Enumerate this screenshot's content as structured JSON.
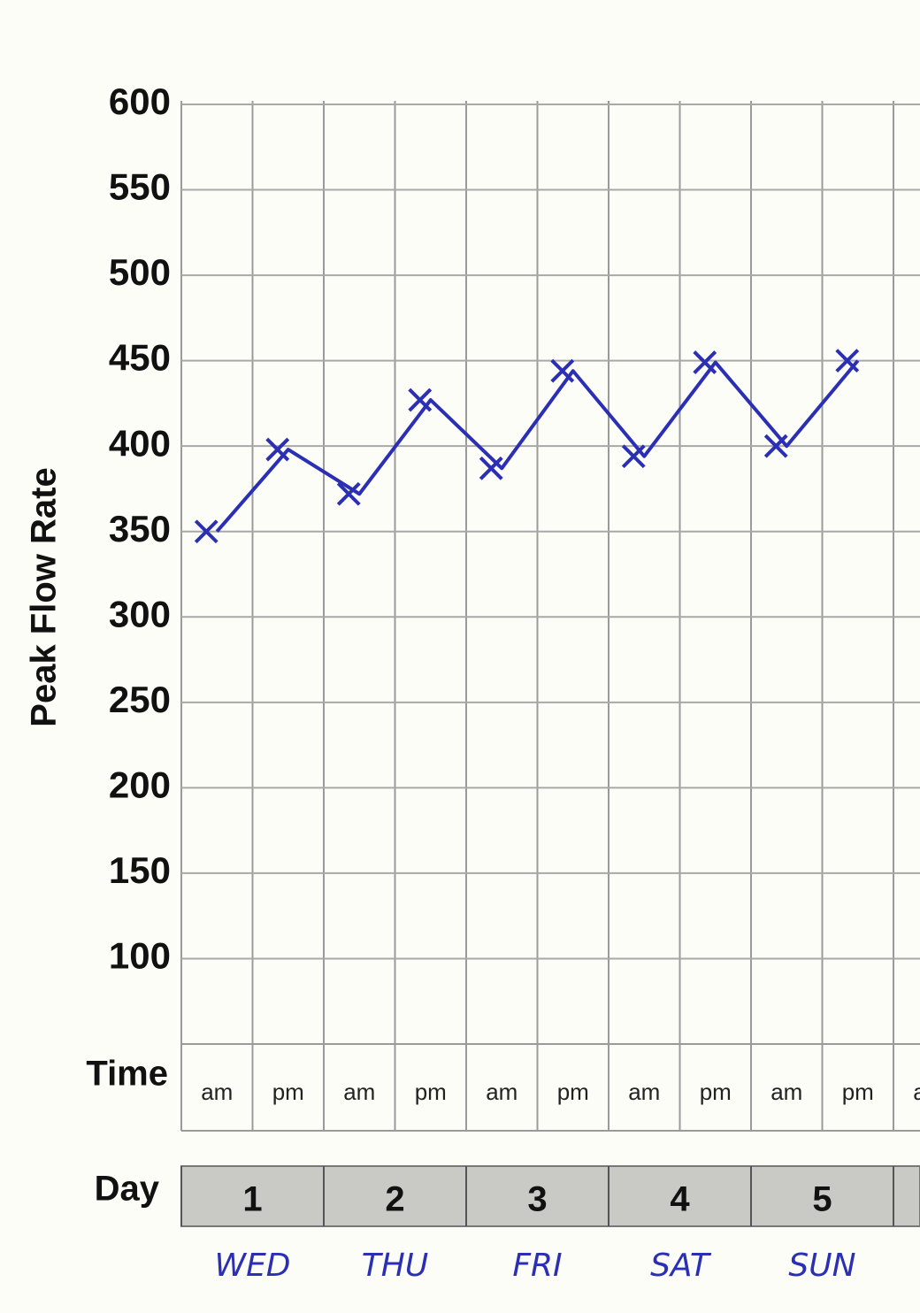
{
  "chart_data": {
    "type": "line",
    "y_label": "Peak Flow Rate",
    "time_label": "Time",
    "day_label": "Day",
    "categories": [
      "am",
      "pm",
      "am",
      "pm",
      "am",
      "pm",
      "am",
      "pm",
      "am",
      "pm",
      "am"
    ],
    "days": [
      "1",
      "2",
      "3",
      "4",
      "5",
      ""
    ],
    "day_notes": [
      "WED",
      "THU",
      "FRI",
      "SAT",
      "SUN"
    ],
    "series": [
      {
        "color": "#2b2fb4",
        "values": [
          350,
          398,
          372,
          427,
          387,
          444,
          394,
          449,
          400,
          450,
          null
        ]
      }
    ],
    "ylim": [
      50,
      600
    ],
    "yticks": [
      100,
      150,
      200,
      250,
      300,
      350,
      400,
      450,
      500,
      550,
      600
    ],
    "grid": true
  }
}
